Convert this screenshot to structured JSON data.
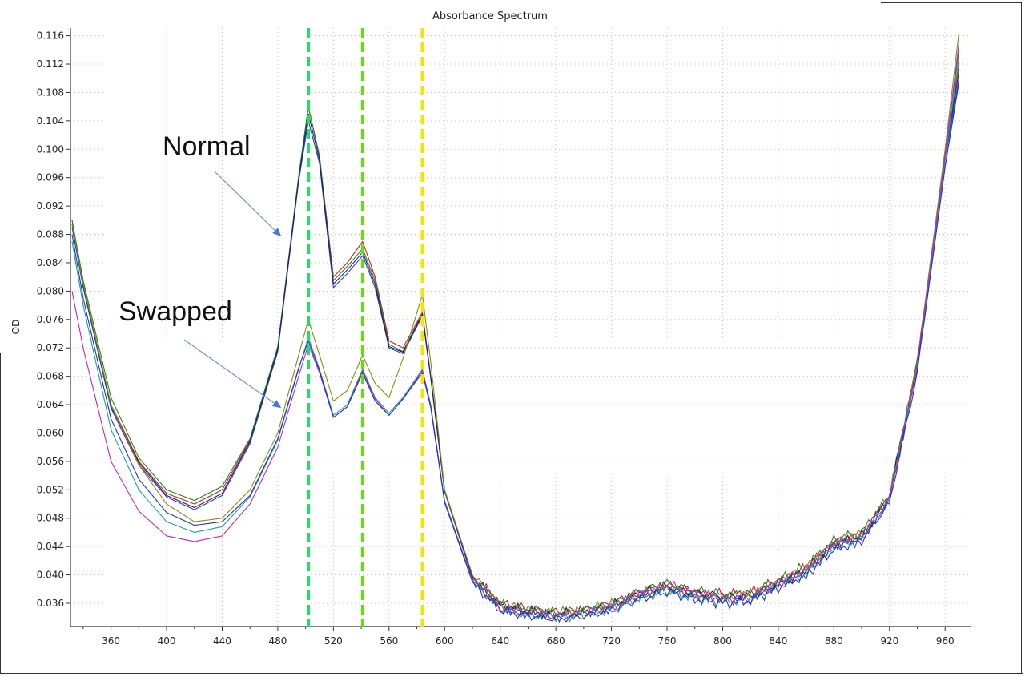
{
  "chart_data": {
    "type": "line",
    "title": "Absorbance Spectrum",
    "xlabel": "",
    "ylabel": "OD",
    "xlim": [
      330,
      975
    ],
    "ylim": [
      0.033,
      0.117
    ],
    "x_ticks": [
      360,
      400,
      440,
      480,
      520,
      560,
      600,
      640,
      680,
      720,
      760,
      800,
      840,
      880,
      920,
      960
    ],
    "y_ticks": [
      "0.036",
      "0.040",
      "0.044",
      "0.048",
      "0.052",
      "0.056",
      "0.060",
      "0.064",
      "0.068",
      "0.072",
      "0.076",
      "0.080",
      "0.084",
      "0.088",
      "0.092",
      "0.096",
      "0.100",
      "0.104",
      "0.108",
      "0.112",
      "0.116"
    ],
    "grid": true,
    "legend": "none",
    "vertical_markers": [
      {
        "x": 502,
        "color": "#22dd66"
      },
      {
        "x": 541,
        "color": "#66dd11"
      },
      {
        "x": 584,
        "color": "#f2e600"
      }
    ],
    "annotations": [
      {
        "text": "Normal",
        "arrow_to": {
          "x": 482,
          "y": 0.0878
        }
      },
      {
        "text": "Swapped",
        "arrow_to": {
          "x": 482,
          "y": 0.0636
        }
      }
    ],
    "series": [
      {
        "group": "Normal",
        "color": "#d11c1c",
        "x": [
          332,
          340,
          360,
          380,
          400,
          420,
          440,
          460,
          480,
          495,
          502,
          510,
          520,
          530,
          541,
          550,
          560,
          570,
          584,
          590,
          600,
          620,
          640,
          660,
          680,
          700,
          720,
          740,
          760,
          780,
          800,
          820,
          840,
          860,
          880,
          900,
          920,
          940,
          960,
          970
        ],
        "y": [
          0.09,
          0.081,
          0.064,
          0.056,
          0.0515,
          0.05,
          0.052,
          0.059,
          0.072,
          0.096,
          0.106,
          0.099,
          0.082,
          0.084,
          0.087,
          0.082,
          0.073,
          0.072,
          0.077,
          0.068,
          0.052,
          0.04,
          0.036,
          0.0352,
          0.0348,
          0.035,
          0.036,
          0.0375,
          0.0385,
          0.0375,
          0.0372,
          0.0375,
          0.039,
          0.041,
          0.0445,
          0.0455,
          0.051,
          0.07,
          0.099,
          0.112
        ]
      },
      {
        "group": "Normal",
        "color": "#1f8a1f",
        "x": [
          332,
          340,
          360,
          380,
          400,
          420,
          440,
          460,
          480,
          495,
          502,
          510,
          520,
          530,
          541,
          550,
          560,
          570,
          584,
          590,
          600,
          620,
          640,
          660,
          680,
          700,
          720,
          740,
          760,
          780,
          800,
          820,
          840,
          860,
          880,
          900,
          920,
          940,
          960,
          970
        ],
        "y": [
          0.09,
          0.0815,
          0.065,
          0.0565,
          0.052,
          0.0505,
          0.0525,
          0.0592,
          0.0722,
          0.0962,
          0.106,
          0.099,
          0.0815,
          0.0835,
          0.086,
          0.0815,
          0.0725,
          0.0715,
          0.0768,
          0.068,
          0.052,
          0.0398,
          0.0358,
          0.035,
          0.0346,
          0.035,
          0.0358,
          0.0378,
          0.0388,
          0.0378,
          0.0372,
          0.0372,
          0.0392,
          0.0412,
          0.0448,
          0.046,
          0.0512,
          0.07,
          0.0995,
          0.114
        ]
      },
      {
        "group": "Normal",
        "color": "#2a3ad8",
        "x": [
          332,
          340,
          360,
          380,
          400,
          420,
          440,
          460,
          480,
          495,
          502,
          510,
          520,
          530,
          541,
          550,
          560,
          570,
          584,
          590,
          600,
          620,
          640,
          660,
          680,
          700,
          720,
          740,
          760,
          780,
          800,
          820,
          840,
          860,
          880,
          900,
          920,
          940,
          960,
          970
        ],
        "y": [
          0.089,
          0.0805,
          0.0635,
          0.0555,
          0.051,
          0.0492,
          0.0512,
          0.0585,
          0.0715,
          0.0955,
          0.104,
          0.098,
          0.0805,
          0.0825,
          0.085,
          0.0805,
          0.072,
          0.0712,
          0.0765,
          0.0678,
          0.0518,
          0.0395,
          0.0355,
          0.0346,
          0.0342,
          0.0346,
          0.0354,
          0.0372,
          0.038,
          0.0372,
          0.0366,
          0.0368,
          0.0386,
          0.0402,
          0.044,
          0.045,
          0.0508,
          0.069,
          0.0985,
          0.11
        ]
      },
      {
        "group": "Normal",
        "color": "#222266",
        "x": [
          332,
          340,
          360,
          380,
          400,
          420,
          440,
          460,
          480,
          495,
          502,
          510,
          520,
          530,
          541,
          550,
          560,
          570,
          584,
          590,
          600,
          620,
          640,
          660,
          680,
          700,
          720,
          740,
          760,
          780,
          800,
          820,
          840,
          860,
          880,
          900,
          920,
          940,
          960,
          970
        ],
        "y": [
          0.0895,
          0.0808,
          0.0638,
          0.0558,
          0.0512,
          0.0495,
          0.0515,
          0.0588,
          0.0718,
          0.0958,
          0.105,
          0.0985,
          0.081,
          0.083,
          0.0855,
          0.081,
          0.0722,
          0.0714,
          0.0767,
          0.0679,
          0.0519,
          0.0397,
          0.0357,
          0.0348,
          0.0344,
          0.0348,
          0.0356,
          0.0375,
          0.0384,
          0.0375,
          0.037,
          0.037,
          0.0388,
          0.0406,
          0.0444,
          0.0454,
          0.051,
          0.0695,
          0.099,
          0.111
        ]
      },
      {
        "group": "Swapped",
        "color": "#8a8a10",
        "x": [
          332,
          340,
          360,
          380,
          400,
          420,
          440,
          460,
          480,
          495,
          502,
          510,
          520,
          530,
          541,
          550,
          560,
          570,
          584,
          590,
          600,
          620,
          640,
          660,
          680,
          700,
          720,
          740,
          760,
          780,
          800,
          820,
          840,
          860,
          880,
          900,
          920,
          940,
          960,
          970
        ],
        "y": [
          0.0895,
          0.081,
          0.064,
          0.0555,
          0.05,
          0.0475,
          0.048,
          0.052,
          0.06,
          0.071,
          0.076,
          0.071,
          0.0645,
          0.066,
          0.071,
          0.067,
          0.065,
          0.0705,
          0.0795,
          0.07,
          0.052,
          0.04,
          0.0358,
          0.035,
          0.0346,
          0.035,
          0.0358,
          0.0372,
          0.0382,
          0.0372,
          0.0368,
          0.0372,
          0.039,
          0.041,
          0.0446,
          0.0458,
          0.051,
          0.07,
          0.1,
          0.1165
        ]
      },
      {
        "group": "Swapped",
        "color": "#1aa0a0",
        "x": [
          332,
          340,
          360,
          380,
          400,
          420,
          440,
          460,
          480,
          495,
          502,
          510,
          520,
          530,
          541,
          550,
          560,
          570,
          584,
          590,
          600,
          620,
          640,
          660,
          680,
          700,
          720,
          740,
          760,
          780,
          800,
          820,
          840,
          860,
          880,
          900,
          920,
          940,
          960,
          970
        ],
        "y": [
          0.087,
          0.078,
          0.0605,
          0.052,
          0.0475,
          0.046,
          0.0468,
          0.051,
          0.059,
          0.069,
          0.0735,
          0.069,
          0.0625,
          0.064,
          0.069,
          0.065,
          0.0628,
          0.065,
          0.069,
          0.064,
          0.0505,
          0.0392,
          0.0352,
          0.0344,
          0.034,
          0.0344,
          0.0352,
          0.0368,
          0.0378,
          0.0368,
          0.0362,
          0.0366,
          0.0384,
          0.0402,
          0.044,
          0.0452,
          0.0505,
          0.069,
          0.0985,
          0.113
        ]
      },
      {
        "group": "Swapped",
        "color": "#c026c0",
        "x": [
          332,
          340,
          360,
          380,
          400,
          420,
          440,
          460,
          480,
          495,
          502,
          510,
          520,
          530,
          541,
          550,
          560,
          570,
          584,
          590,
          600,
          620,
          640,
          660,
          680,
          700,
          720,
          740,
          760,
          780,
          800,
          820,
          840,
          860,
          880,
          900,
          920,
          940,
          960,
          970
        ],
        "y": [
          0.08,
          0.072,
          0.056,
          0.049,
          0.0455,
          0.0447,
          0.0455,
          0.05,
          0.058,
          0.068,
          0.0725,
          0.0685,
          0.0622,
          0.0637,
          0.0688,
          0.0648,
          0.0625,
          0.0648,
          0.0688,
          0.0638,
          0.0503,
          0.0392,
          0.0353,
          0.0346,
          0.0342,
          0.0346,
          0.0354,
          0.0372,
          0.0385,
          0.0374,
          0.0366,
          0.0368,
          0.0388,
          0.0408,
          0.0446,
          0.0456,
          0.0508,
          0.0695,
          0.099,
          0.115
        ]
      },
      {
        "group": "Swapped",
        "color": "#1c34c8",
        "x": [
          332,
          340,
          360,
          380,
          400,
          420,
          440,
          460,
          480,
          495,
          502,
          510,
          520,
          530,
          541,
          550,
          560,
          570,
          584,
          590,
          600,
          620,
          640,
          660,
          680,
          700,
          720,
          740,
          760,
          780,
          800,
          820,
          840,
          860,
          880,
          900,
          920,
          940,
          960,
          970
        ],
        "y": [
          0.088,
          0.079,
          0.062,
          0.0535,
          0.0488,
          0.047,
          0.0475,
          0.0512,
          0.0592,
          0.0692,
          0.073,
          0.0688,
          0.0622,
          0.0637,
          0.0685,
          0.0645,
          0.0625,
          0.0648,
          0.0685,
          0.0636,
          0.0502,
          0.039,
          0.035,
          0.0343,
          0.0338,
          0.0342,
          0.035,
          0.0366,
          0.0376,
          0.0366,
          0.036,
          0.0364,
          0.0382,
          0.04,
          0.0436,
          0.0448,
          0.0502,
          0.0685,
          0.0975,
          0.1095
        ]
      }
    ]
  }
}
